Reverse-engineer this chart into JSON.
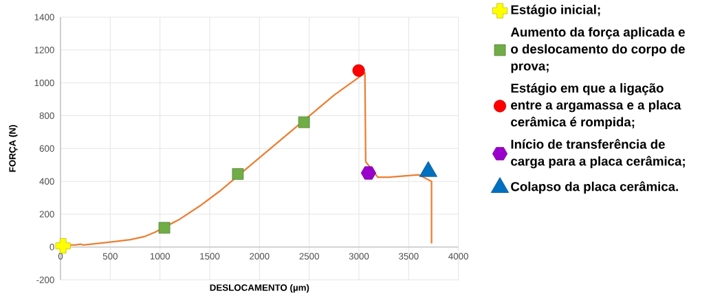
{
  "chart_data": {
    "type": "line",
    "xlabel": "DESLOCAMENTO (µm)",
    "ylabel": "FORÇA (N)",
    "xlim": [
      0,
      4000
    ],
    "ylim": [
      -200,
      1400
    ],
    "xticks": [
      0,
      500,
      1000,
      1500,
      2000,
      2500,
      3000,
      3500,
      4000
    ],
    "yticks": [
      -200,
      0,
      200,
      400,
      600,
      800,
      1000,
      1200,
      1400
    ],
    "grid": true,
    "legend": "right",
    "series": [
      {
        "color": "#ed7d31",
        "marker": "none",
        "x": [
          10,
          150,
          200,
          230,
          500,
          700,
          850,
          950,
          1050,
          1200,
          1400,
          1600,
          1800,
          2100,
          2450,
          2750,
          3000,
          3060,
          3068,
          3190,
          3300,
          3600,
          3730,
          3730
        ],
        "values": [
          12,
          12,
          18,
          12,
          30,
          45,
          65,
          90,
          null,
          170,
          250,
          340,
          null,
          595,
          null,
          925,
          null,
          1060,
          520,
          425,
          425,
          440,
          400,
          25
        ]
      },
      {
        "type": "scatter",
        "name": "Estágio inicial;",
        "color": "#ffff00",
        "marker": "cross",
        "x": [
          25
        ],
        "values": [
          7
        ]
      },
      {
        "type": "scatter",
        "name": "Aumento da força aplicada e o deslocamento do corpo de prova;",
        "color": "#70ad47",
        "marker": "square",
        "x": [
          1044,
          1783,
          2448
        ],
        "values": [
          117,
          445,
          760
        ]
      },
      {
        "type": "scatter",
        "name": "Estágio em que a ligação entre a argamassa e a placa cerâmica é rompida;",
        "color": "#ff0000",
        "marker": "circle",
        "x": [
          2997
        ],
        "values": [
          1075
        ]
      },
      {
        "type": "scatter",
        "name": "Início de transferência de carga para a placa cerâmica;",
        "color": "#9900cc",
        "x": [
          3096
        ],
        "values": [
          451
        ]
      },
      {
        "type": "scatter",
        "name": "Colapso da placa cerâmica.",
        "color": "#0070c0",
        "marker": "triangle",
        "x": [
          3697
        ],
        "values": [
          460
        ]
      }
    ]
  }
}
